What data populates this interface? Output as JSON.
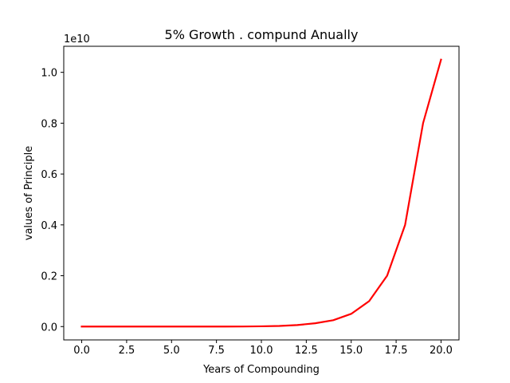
{
  "chart_data": {
    "type": "line",
    "title": "5% Growth . compund Anually",
    "xlabel": "Years of Compounding",
    "ylabel": "values of Principle",
    "y_offset_label": "1e10",
    "xlim": [
      -1,
      21
    ],
    "ylim": [
      -0.0525,
      1.1025
    ],
    "xticks": [
      0.0,
      2.5,
      5.0,
      7.5,
      10.0,
      12.5,
      15.0,
      17.5,
      20.0
    ],
    "xtick_labels": [
      "0.0",
      "2.5",
      "5.0",
      "7.5",
      "10.0",
      "12.5",
      "15.0",
      "17.5",
      "20.0"
    ],
    "yticks": [
      0.0,
      0.2,
      0.4,
      0.6,
      0.8,
      1.0
    ],
    "ytick_labels": [
      "0.0",
      "0.2",
      "0.4",
      "0.6",
      "0.8",
      "1.0"
    ],
    "grid": false,
    "series": [
      {
        "color": "#ff0000",
        "x": [
          0,
          1,
          2,
          3,
          4,
          5,
          6,
          7,
          8,
          9,
          10,
          11,
          12,
          13,
          14,
          15,
          16,
          17,
          18,
          19,
          20
        ],
        "y": [
          0.0,
          0.0,
          0.0,
          0.0,
          0.0,
          0.0,
          0.0,
          0.0,
          0.0001,
          0.0002,
          0.001,
          0.0025,
          0.006,
          0.013,
          0.025,
          0.05,
          0.1,
          0.2,
          0.4,
          0.8,
          1.05
        ]
      }
    ]
  }
}
